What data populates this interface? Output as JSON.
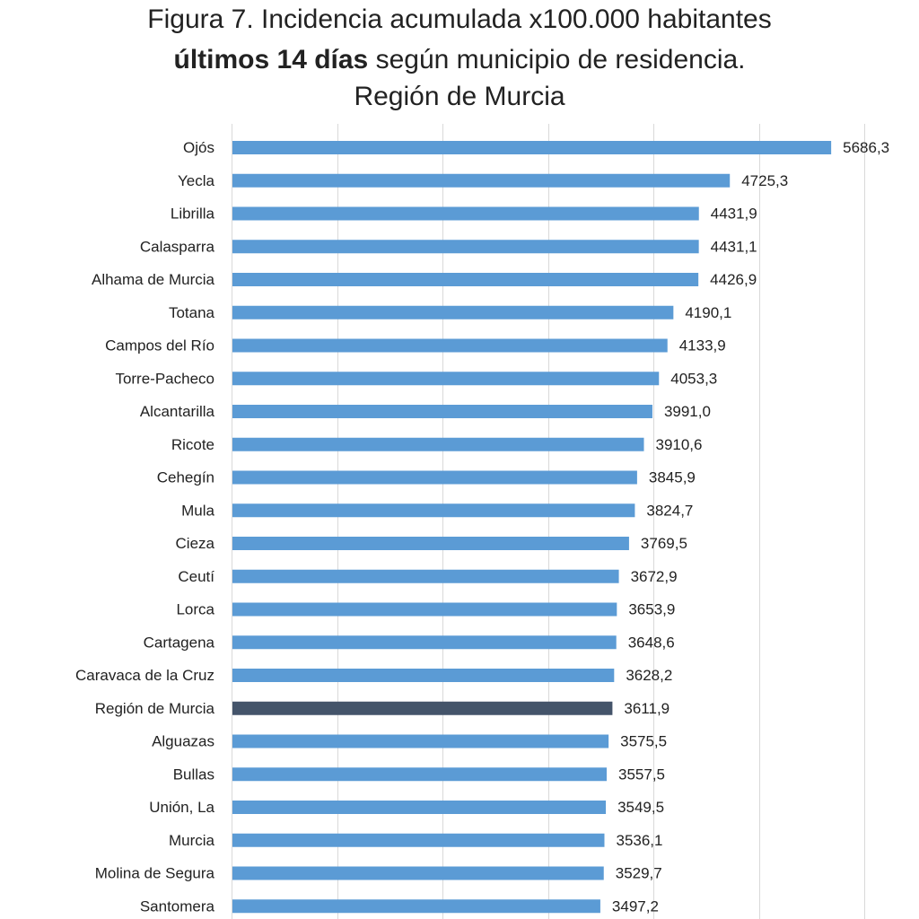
{
  "chart_data": {
    "type": "bar",
    "orientation": "horizontal",
    "title": {
      "line1": "Figura 7. Incidencia acumulada x100.000 habitantes",
      "line2_bold": "últimos 14 días",
      "line2_rest": " según municipio de residencia.",
      "line3": "Región de Murcia"
    },
    "xlabel": "",
    "ylabel": "",
    "xlim": [
      0,
      6000
    ],
    "grid": true,
    "legend": "none",
    "colors": {
      "bar": "#5b9bd5",
      "highlight": "#44546a",
      "grid": "#d9d9d9"
    },
    "highlight_category": "Región de Murcia",
    "categories": [
      "Ojós",
      "Yecla",
      "Librilla",
      "Calasparra",
      "Alhama de Murcia",
      "Totana",
      "Campos del Río",
      "Torre-Pacheco",
      "Alcantarilla",
      "Ricote",
      "Cehegín",
      "Mula",
      "Cieza",
      "Ceutí",
      "Lorca",
      "Cartagena",
      "Caravaca de la Cruz",
      "Región de Murcia",
      "Alguazas",
      "Bullas",
      "Unión, La",
      "Murcia",
      "Molina de Segura",
      "Santomera"
    ],
    "values": [
      5686.3,
      4725.3,
      4431.9,
      4431.1,
      4426.9,
      4190.1,
      4133.9,
      4053.3,
      3991.0,
      3910.6,
      3845.9,
      3824.7,
      3769.5,
      3672.9,
      3653.9,
      3648.6,
      3628.2,
      3611.9,
      3575.5,
      3557.5,
      3549.5,
      3536.1,
      3529.7,
      3497.2
    ],
    "value_labels": [
      "5686,3",
      "4725,3",
      "4431,9",
      "4431,1",
      "4426,9",
      "4190,1",
      "4133,9",
      "4053,3",
      "3991,0",
      "3910,6",
      "3845,9",
      "3824,7",
      "3769,5",
      "3672,9",
      "3653,9",
      "3648,6",
      "3628,2",
      "3611,9",
      "3575,5",
      "3557,5",
      "3549,5",
      "3536,1",
      "3529,7",
      "3497,2"
    ]
  }
}
